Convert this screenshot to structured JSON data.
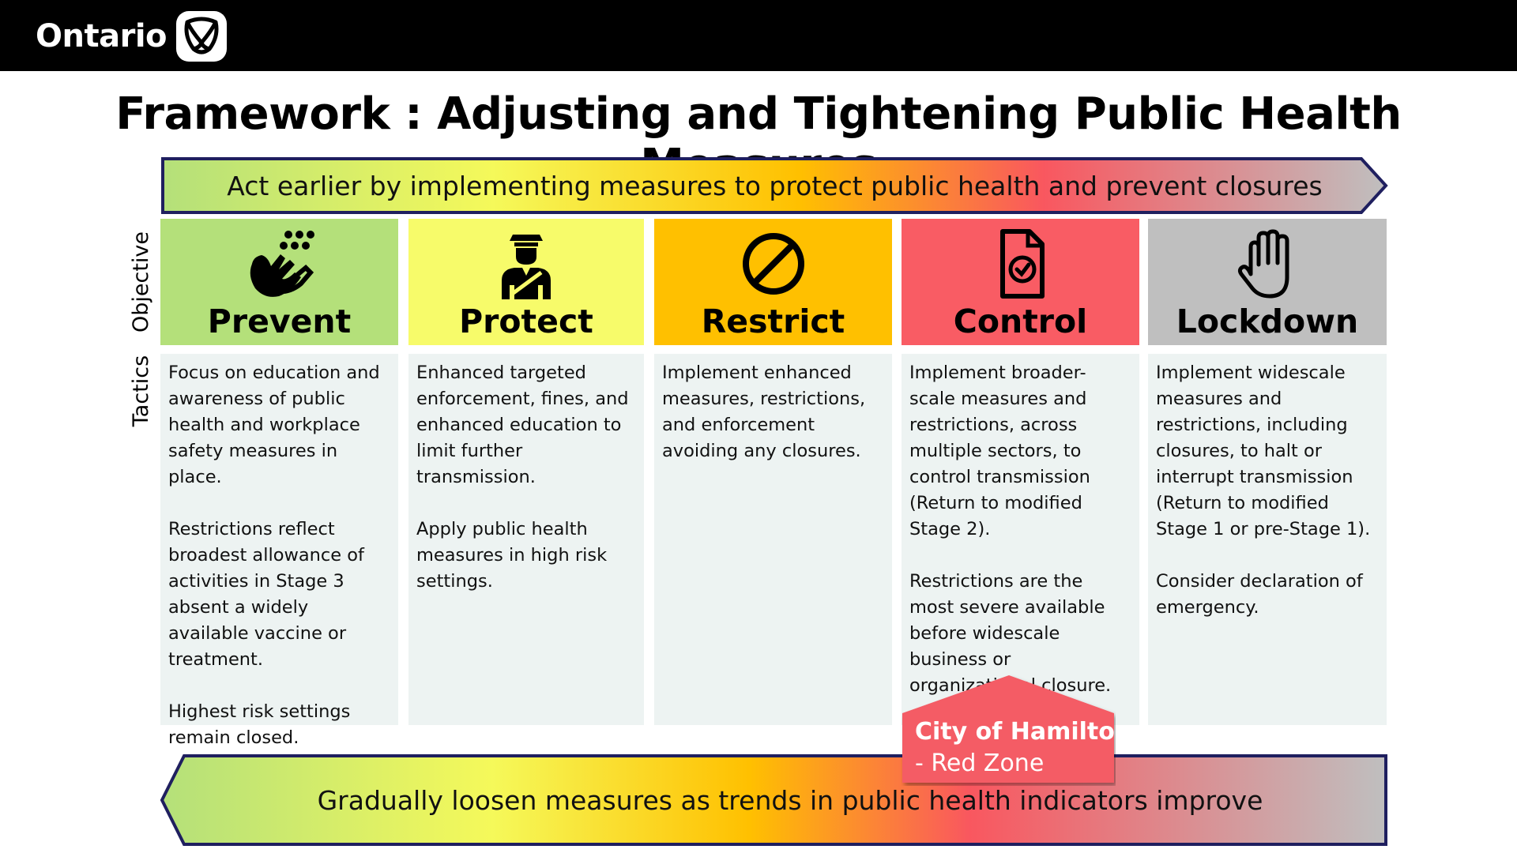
{
  "header": {
    "brand": "Ontario",
    "logo_icon": "ontario-trillium-logo"
  },
  "title": "Framework : Adjusting and Tightening Public Health Measures",
  "top_arrow": {
    "text": "Act earlier by implementing measures to protect public health and prevent closures",
    "direction": "right"
  },
  "bottom_arrow": {
    "text": "Gradually loosen measures as trends in public health indicators improve",
    "direction": "left"
  },
  "row_labels": {
    "objective": "Objective",
    "tactics": "Tactics"
  },
  "gradient_colors": [
    "#b4e07a",
    "#f7f95a",
    "#ffc400",
    "#f9575f",
    "#c0c0c0"
  ],
  "columns": [
    {
      "name": "Prevent",
      "icon": "hand-washing-icon",
      "color": "#b4e07a",
      "tactics": [
        "Focus on education and awareness of public health and workplace safety measures in place.",
        "Restrictions reflect broadest allowance of activities in Stage 3 absent a widely available vaccine or treatment.",
        "Highest risk settings remain closed."
      ]
    },
    {
      "name": "Protect",
      "icon": "police-officer-icon",
      "color": "#f7fb6a",
      "tactics": [
        "Enhanced targeted enforcement, fines, and enhanced education to limit further transmission.",
        "Apply public health measures in high risk settings."
      ]
    },
    {
      "name": "Restrict",
      "icon": "prohibited-icon",
      "color": "#ffc000",
      "tactics": [
        "Implement enhanced measures, restrictions, and enforcement avoiding any closures."
      ]
    },
    {
      "name": "Control",
      "icon": "document-check-icon",
      "color": "#f95c64",
      "tactics": [
        "Implement broader-scale measures and restrictions, across multiple sectors, to control transmission (Return to modified Stage 2).",
        "Restrictions are the most severe available before widescale business or organizational closure."
      ]
    },
    {
      "name": "Lockdown",
      "icon": "stop-hand-icon",
      "color": "#bfbfbf",
      "tactics": [
        "Implement widescale measures and restrictions, including closures, to halt or interrupt transmission (Return to modified Stage 1 or pre-Stage 1).",
        "Consider declaration of emergency."
      ]
    }
  ],
  "callout": {
    "title": "City of Hamilton",
    "subtitle": "- Red Zone",
    "color": "#f45b65"
  }
}
